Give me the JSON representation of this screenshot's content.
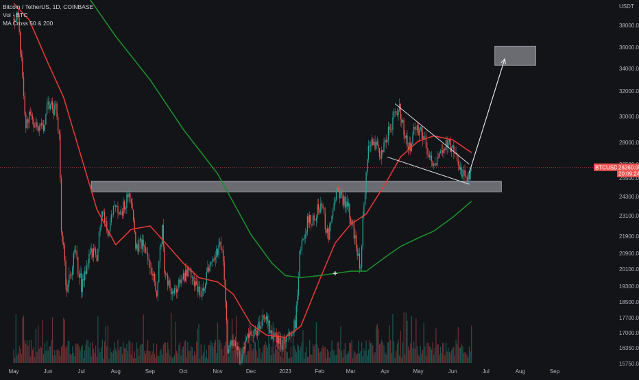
{
  "legend": {
    "symbol": "Bitcoin / TetherUS, 1D, COINBASE",
    "volume": "Vol · BTC",
    "ma": "MA Cross 50 & 200"
  },
  "axis": {
    "unit": "USDT",
    "price_tag": "BTCUSDT",
    "last_price": "26260.05",
    "countdown": "20:09:24"
  },
  "colors": {
    "background": "#121418",
    "up": "#26a69a",
    "down": "#ef5350",
    "ma_fast": "#e53935",
    "ma_slow": "#1b8f2a",
    "zone": "#b2b5be"
  },
  "chart_data": {
    "type": "candlestick",
    "y_ticks": [
      15750,
      16350,
      17000,
      17700,
      18500,
      19300,
      20100,
      20900,
      21900,
      23100,
      24300,
      25500,
      26500,
      28000,
      30000,
      32000,
      34000,
      36000,
      38000
    ],
    "x_labels": [
      "May",
      "Jun",
      "Jul",
      "Aug",
      "Sep",
      "Oct",
      "Nov",
      "Dec",
      "2023",
      "Feb",
      "Mar",
      "Apr",
      "May",
      "Jun",
      "Jul",
      "Aug",
      "Sep"
    ],
    "price_path": [
      [
        "2022-05-01",
        38500
      ],
      [
        "2022-05-05",
        39000
      ],
      [
        "2022-05-08",
        34500
      ],
      [
        "2022-05-12",
        29000
      ],
      [
        "2022-05-15",
        30500
      ],
      [
        "2022-05-20",
        29500
      ],
      [
        "2022-05-27",
        29000
      ],
      [
        "2022-06-01",
        31000
      ],
      [
        "2022-06-08",
        30500
      ],
      [
        "2022-06-11",
        28500
      ],
      [
        "2022-06-13",
        22500
      ],
      [
        "2022-06-18",
        19000
      ],
      [
        "2022-06-25",
        21000
      ],
      [
        "2022-07-01",
        19300
      ],
      [
        "2022-07-10",
        21000
      ],
      [
        "2022-07-15",
        20800
      ],
      [
        "2022-07-20",
        23300
      ],
      [
        "2022-07-26",
        22000
      ],
      [
        "2022-07-30",
        24000
      ],
      [
        "2022-08-04",
        23000
      ],
      [
        "2022-08-10",
        24000
      ],
      [
        "2022-08-14",
        24500
      ],
      [
        "2022-08-19",
        21300
      ],
      [
        "2022-08-25",
        21500
      ],
      [
        "2022-09-01",
        20100
      ],
      [
        "2022-09-07",
        19000
      ],
      [
        "2022-09-12",
        22300
      ],
      [
        "2022-09-14",
        20200
      ],
      [
        "2022-09-21",
        18900
      ],
      [
        "2022-09-28",
        19400
      ],
      [
        "2022-10-05",
        20200
      ],
      [
        "2022-10-13",
        19100
      ],
      [
        "2022-10-20",
        19100
      ],
      [
        "2022-10-26",
        20700
      ],
      [
        "2022-11-05",
        21400
      ],
      [
        "2022-11-08",
        18500
      ],
      [
        "2022-11-10",
        16200
      ],
      [
        "2022-11-15",
        16800
      ],
      [
        "2022-11-22",
        15800
      ],
      [
        "2022-11-30",
        17100
      ],
      [
        "2022-12-05",
        17000
      ],
      [
        "2022-12-14",
        17800
      ],
      [
        "2022-12-20",
        16800
      ],
      [
        "2022-12-31",
        16500
      ],
      [
        "2023-01-10",
        17400
      ],
      [
        "2023-01-14",
        20900
      ],
      [
        "2023-01-21",
        22800
      ],
      [
        "2023-01-27",
        23000
      ],
      [
        "2023-02-02",
        23800
      ],
      [
        "2023-02-09",
        21800
      ],
      [
        "2023-02-16",
        24500
      ],
      [
        "2023-02-21",
        24200
      ],
      [
        "2023-02-27",
        23500
      ],
      [
        "2023-03-03",
        22400
      ],
      [
        "2023-03-10",
        20100
      ],
      [
        "2023-03-13",
        24100
      ],
      [
        "2023-03-17",
        27300
      ],
      [
        "2023-03-22",
        28200
      ],
      [
        "2023-03-28",
        27000
      ],
      [
        "2023-04-02",
        28400
      ],
      [
        "2023-04-11",
        30300
      ],
      [
        "2023-04-14",
        30600
      ],
      [
        "2023-04-20",
        28200
      ],
      [
        "2023-04-24",
        27500
      ],
      [
        "2023-04-28",
        29300
      ],
      [
        "2023-05-06",
        28500
      ],
      [
        "2023-05-12",
        26800
      ],
      [
        "2023-05-19",
        26900
      ],
      [
        "2023-05-28",
        28000
      ],
      [
        "2023-06-02",
        27200
      ],
      [
        "2023-06-10",
        25800
      ],
      [
        "2023-06-14",
        25400
      ],
      [
        "2023-06-18",
        26260
      ]
    ],
    "ma_50": [
      [
        "2022-05-01",
        40000
      ],
      [
        "2022-05-15",
        38500
      ],
      [
        "2022-06-01",
        34500
      ],
      [
        "2022-06-15",
        31500
      ],
      [
        "2022-07-01",
        27000
      ],
      [
        "2022-07-15",
        23500
      ],
      [
        "2022-08-01",
        21400
      ],
      [
        "2022-08-15",
        22300
      ],
      [
        "2022-09-01",
        22500
      ],
      [
        "2022-09-15",
        21500
      ],
      [
        "2022-10-01",
        20400
      ],
      [
        "2022-10-15",
        19700
      ],
      [
        "2022-11-01",
        19500
      ],
      [
        "2022-11-15",
        18900
      ],
      [
        "2022-12-01",
        17400
      ],
      [
        "2022-12-15",
        16900
      ],
      [
        "2023-01-01",
        16800
      ],
      [
        "2023-01-15",
        17300
      ],
      [
        "2023-02-01",
        19600
      ],
      [
        "2023-02-15",
        21500
      ],
      [
        "2023-03-01",
        22600
      ],
      [
        "2023-03-15",
        23200
      ],
      [
        "2023-04-01",
        25100
      ],
      [
        "2023-04-15",
        27000
      ],
      [
        "2023-05-01",
        28100
      ],
      [
        "2023-05-15",
        28500
      ],
      [
        "2023-06-01",
        28200
      ],
      [
        "2023-06-18",
        27300
      ]
    ],
    "ma_200": [
      [
        "2022-05-01",
        48000
      ],
      [
        "2022-06-01",
        45000
      ],
      [
        "2022-07-01",
        41500
      ],
      [
        "2022-08-01",
        37000
      ],
      [
        "2022-09-01",
        33000
      ],
      [
        "2022-10-01",
        29000
      ],
      [
        "2022-11-01",
        25800
      ],
      [
        "2022-12-01",
        22000
      ],
      [
        "2022-12-20",
        20400
      ],
      [
        "2023-01-01",
        19800
      ],
      [
        "2023-01-15",
        19700
      ],
      [
        "2023-02-01",
        19800
      ],
      [
        "2023-02-15",
        19900
      ],
      [
        "2023-03-01",
        20000
      ],
      [
        "2023-03-15",
        20000
      ],
      [
        "2023-04-01",
        20700
      ],
      [
        "2023-04-15",
        21300
      ],
      [
        "2023-05-01",
        21800
      ],
      [
        "2023-05-15",
        22200
      ],
      [
        "2023-06-01",
        23000
      ],
      [
        "2023-06-18",
        24000
      ]
    ],
    "annotations": {
      "support_zone": {
        "from": "2022-07-10",
        "to": "2023-07-15",
        "low": 24600,
        "high": 25300
      },
      "target_zone": {
        "from": "2023-07-09",
        "to": "2023-08-15",
        "low": 34300,
        "high": 36100
      },
      "wedge_upper": [
        [
          "2023-04-10",
          31000
        ],
        [
          "2023-06-16",
          26500
        ]
      ],
      "wedge_lower": [
        [
          "2023-04-03",
          27000
        ],
        [
          "2023-06-16",
          25100
        ]
      ],
      "arrow": [
        [
          "2023-06-16",
          25900
        ],
        [
          "2023-07-18",
          34900
        ]
      ],
      "cross_marker": [
        "2023-02-15",
        19900
      ]
    },
    "volume_seed": 7,
    "grid": false
  }
}
